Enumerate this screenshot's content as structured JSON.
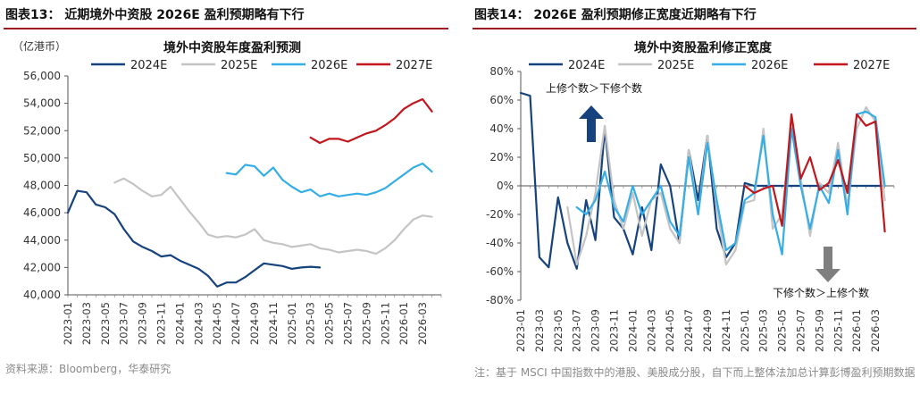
{
  "left_header": "图表13：  近期境外中资股 2026E 盈利预期略有下行",
  "right_header": "图表14：  2026E 盈利预期修正宽度近期略有下行",
  "left_source": "资料来源：Bloomberg，华泰研究",
  "right_source": "注：基于 MSCI 中国指数中的港股、美股成分股，自下而上整体法加总计算彭博盈利预期数据",
  "colors": {
    "2024E": "#16427e",
    "2025E": "#c4c4c4",
    "2026E": "#35aee6",
    "2027E": "#c1161c",
    "arrow_up": "#16427e",
    "arrow_down": "#7f7f7f",
    "header_rule": "#9c1b1f"
  },
  "chart_data": [
    {
      "type": "line",
      "title": "境外中资股年度盈利预测",
      "unit_label": "（亿港币）",
      "ylim": [
        40000,
        56000
      ],
      "yticks": [
        40000,
        42000,
        44000,
        46000,
        48000,
        50000,
        52000,
        54000,
        56000
      ],
      "ytick_labels": [
        "40,000",
        "42,000",
        "44,000",
        "46,000",
        "48,000",
        "50,000",
        "52,000",
        "54,000",
        "56,000"
      ],
      "xticks": [
        "2023-01",
        "2023-03",
        "2023-05",
        "2023-07",
        "2023-09",
        "2023-11",
        "2024-01",
        "2024-03",
        "2024-05",
        "2024-07",
        "2024-09",
        "2024-11",
        "2025-01",
        "2025-03",
        "2025-05",
        "2025-07",
        "2025-09",
        "2025-11",
        "2026-01",
        "2026-03"
      ],
      "legend_position": "top",
      "grid": false,
      "series": [
        {
          "name": "2024E",
          "x": [
            "2023-01",
            "2023-02",
            "2023-03",
            "2023-04",
            "2023-05",
            "2023-06",
            "2023-07",
            "2023-08",
            "2023-09",
            "2023-10",
            "2023-11",
            "2023-12",
            "2024-01",
            "2024-02",
            "2024-03",
            "2024-04",
            "2024-05",
            "2024-06",
            "2024-07",
            "2024-08",
            "2024-09",
            "2024-10",
            "2024-11",
            "2024-12",
            "2025-01",
            "2025-02",
            "2025-03",
            "2025-04"
          ],
          "y": [
            46000,
            47600,
            47500,
            46600,
            46400,
            45900,
            44800,
            43900,
            43500,
            43200,
            42800,
            42900,
            42500,
            42200,
            41900,
            41400,
            40600,
            40900,
            40900,
            41300,
            41800,
            42300,
            42200,
            42100,
            41900,
            42000,
            42050,
            42000
          ]
        },
        {
          "name": "2025E",
          "x": [
            "2023-06",
            "2023-07",
            "2023-08",
            "2023-09",
            "2023-10",
            "2023-11",
            "2023-12",
            "2024-01",
            "2024-02",
            "2024-03",
            "2024-04",
            "2024-05",
            "2024-06",
            "2024-07",
            "2024-08",
            "2024-09",
            "2024-10",
            "2024-11",
            "2024-12",
            "2025-01",
            "2025-02",
            "2025-03",
            "2025-04",
            "2025-05",
            "2025-06",
            "2025-07",
            "2025-08",
            "2025-09",
            "2025-10",
            "2025-11",
            "2025-12",
            "2026-01",
            "2026-02",
            "2026-03",
            "2026-04"
          ],
          "y": [
            48200,
            48500,
            48100,
            47600,
            47200,
            47300,
            47900,
            47000,
            46100,
            45300,
            44400,
            44200,
            44300,
            44200,
            44400,
            44800,
            44000,
            43800,
            43700,
            43500,
            43600,
            43700,
            43400,
            43300,
            43100,
            43200,
            43300,
            43200,
            43000,
            43400,
            44000,
            44800,
            45500,
            45800,
            45700
          ]
        },
        {
          "name": "2026E",
          "x": [
            "2024-06",
            "2024-07",
            "2024-08",
            "2024-09",
            "2024-10",
            "2024-11",
            "2024-12",
            "2025-01",
            "2025-02",
            "2025-03",
            "2025-04",
            "2025-05",
            "2025-06",
            "2025-07",
            "2025-08",
            "2025-09",
            "2025-10",
            "2025-11",
            "2025-12",
            "2026-01",
            "2026-02",
            "2026-03",
            "2026-04"
          ],
          "y": [
            48900,
            48800,
            49500,
            49400,
            48700,
            49300,
            48400,
            47900,
            47500,
            47700,
            47200,
            47400,
            47200,
            47300,
            47400,
            47300,
            47500,
            47800,
            48300,
            48800,
            49300,
            49600,
            49000
          ]
        },
        {
          "name": "2027E",
          "x": [
            "2025-03",
            "2025-04",
            "2025-05",
            "2025-06",
            "2025-07",
            "2025-08",
            "2025-09",
            "2025-10",
            "2025-11",
            "2025-12",
            "2026-01",
            "2026-02",
            "2026-03",
            "2026-04"
          ],
          "y": [
            51500,
            51100,
            51400,
            51400,
            51200,
            51500,
            51800,
            52000,
            52400,
            52900,
            53600,
            54000,
            54300,
            53400
          ]
        }
      ]
    },
    {
      "type": "line",
      "title": "境外中资股盈利修正宽度",
      "ylim": [
        -80,
        80
      ],
      "yticks": [
        -80,
        -60,
        -40,
        -20,
        0,
        20,
        40,
        60,
        80
      ],
      "ytick_labels": [
        "-80%",
        "-60%",
        "-40%",
        "-20%",
        "0%",
        "20%",
        "40%",
        "60%",
        "80%"
      ],
      "xticks": [
        "2023-01",
        "2023-03",
        "2023-05",
        "2023-07",
        "2023-09",
        "2023-11",
        "2024-01",
        "2024-03",
        "2024-05",
        "2024-07",
        "2024-09",
        "2024-11",
        "2025-01",
        "2025-03",
        "2025-05",
        "2025-07",
        "2025-09",
        "2025-11",
        "2026-01",
        "2026-03"
      ],
      "legend_position": "top",
      "grid": false,
      "annotations": [
        "上修个数＞下修个数",
        "下修个数＞上修个数"
      ],
      "series": [
        {
          "name": "2024E",
          "x": [
            "2023-01",
            "2023-02",
            "2023-03",
            "2023-04",
            "2023-05",
            "2023-06",
            "2023-07",
            "2023-08",
            "2023-09",
            "2023-10",
            "2023-11",
            "2023-12",
            "2024-01",
            "2024-02",
            "2024-03",
            "2024-04",
            "2024-05",
            "2024-06",
            "2024-07",
            "2024-08",
            "2024-09",
            "2024-10",
            "2024-11",
            "2024-12",
            "2025-01",
            "2025-02",
            "2025-03",
            "2025-04",
            "2025-05",
            "2025-07",
            "2025-09",
            "2025-11",
            "2026-01",
            "2026-03",
            "2026-04"
          ],
          "y": [
            65,
            63,
            -50,
            -57,
            -8,
            -40,
            -58,
            -10,
            -38,
            40,
            -22,
            -30,
            -48,
            -15,
            -45,
            15,
            0,
            -40,
            25,
            -10,
            35,
            -30,
            -50,
            -40,
            2,
            0,
            0,
            0,
            0,
            0,
            0,
            0,
            0,
            0,
            0
          ]
        },
        {
          "name": "2025E",
          "x": [
            "2023-06",
            "2023-07",
            "2023-08",
            "2023-09",
            "2023-10",
            "2023-11",
            "2023-12",
            "2024-01",
            "2024-02",
            "2024-03",
            "2024-04",
            "2024-05",
            "2024-06",
            "2024-07",
            "2024-08",
            "2024-09",
            "2024-10",
            "2024-11",
            "2024-12",
            "2025-01",
            "2025-02",
            "2025-03",
            "2025-04",
            "2025-05",
            "2025-06",
            "2025-07",
            "2025-08",
            "2025-09",
            "2025-10",
            "2025-11",
            "2025-12",
            "2026-01",
            "2026-02",
            "2026-03",
            "2026-04"
          ],
          "y": [
            -15,
            -55,
            -35,
            -5,
            42,
            -10,
            -30,
            -5,
            -35,
            -10,
            -5,
            -30,
            -40,
            25,
            -20,
            35,
            -15,
            -55,
            -45,
            -12,
            -10,
            40,
            -30,
            -20,
            45,
            5,
            -35,
            2,
            -5,
            30,
            -15,
            40,
            55,
            45,
            -10
          ]
        },
        {
          "name": "2026E",
          "x": [
            "2023-07",
            "2023-08",
            "2023-09",
            "2023-10",
            "2023-11",
            "2023-12",
            "2024-01",
            "2024-02",
            "2024-03",
            "2024-04",
            "2024-05",
            "2024-06",
            "2024-07",
            "2024-08",
            "2024-09",
            "2024-10",
            "2024-11",
            "2024-12",
            "2025-01",
            "2025-02",
            "2025-03",
            "2025-04",
            "2025-05",
            "2025-06",
            "2025-07",
            "2025-08",
            "2025-09",
            "2025-10",
            "2025-11",
            "2025-12",
            "2026-01",
            "2026-02",
            "2026-03",
            "2026-04"
          ],
          "y": [
            -15,
            -20,
            -10,
            10,
            -15,
            -25,
            0,
            -20,
            -10,
            0,
            -25,
            -35,
            20,
            -20,
            30,
            -10,
            -45,
            -40,
            -10,
            -5,
            35,
            -20,
            -48,
            40,
            0,
            -30,
            0,
            -12,
            25,
            -20,
            50,
            52,
            48,
            0
          ]
        },
        {
          "name": "2027E",
          "x": [
            "2025-01",
            "2025-02",
            "2025-03",
            "2025-04",
            "2025-05",
            "2025-06",
            "2025-07",
            "2025-08",
            "2025-09",
            "2025-10",
            "2025-11",
            "2025-12",
            "2026-01",
            "2026-02",
            "2026-03",
            "2026-04"
          ],
          "y": [
            0,
            -5,
            -2,
            0,
            -28,
            50,
            5,
            20,
            -3,
            2,
            18,
            -5,
            50,
            42,
            45,
            -32
          ]
        }
      ]
    }
  ]
}
